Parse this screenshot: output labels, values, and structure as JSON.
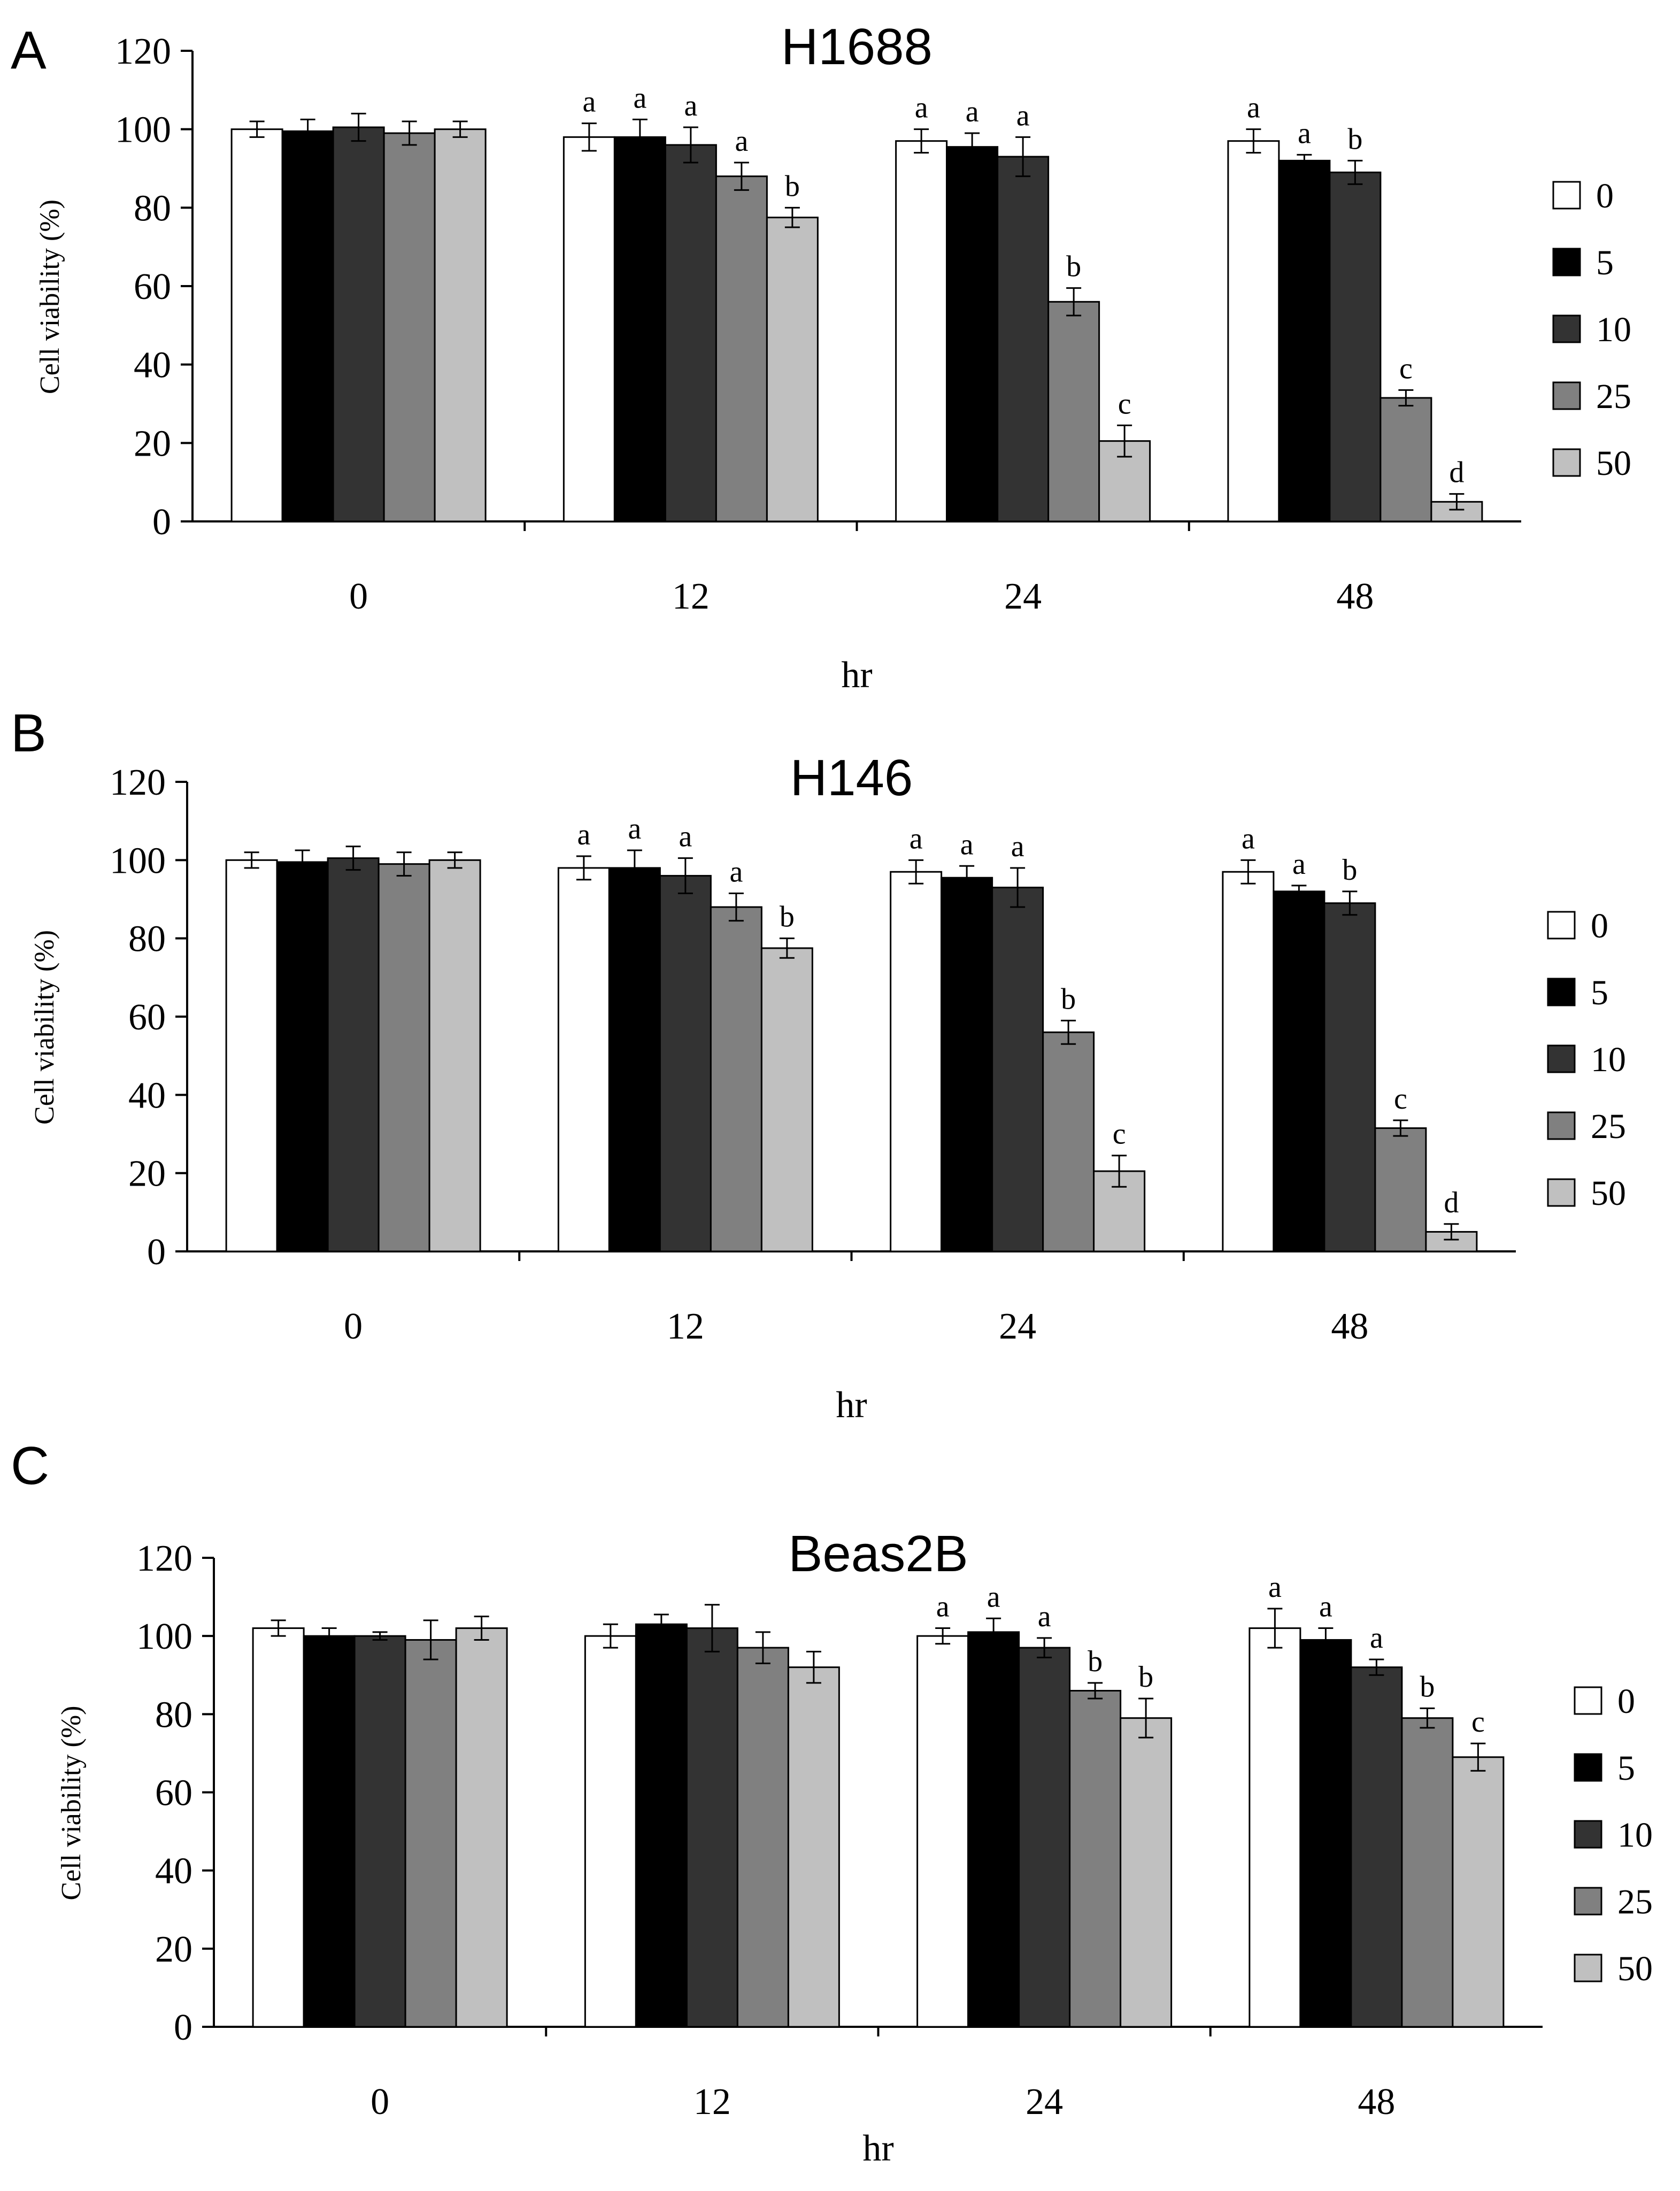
{
  "figure": {
    "panels": [
      "A",
      "B",
      "C"
    ]
  },
  "legend_title": "",
  "chart_data": [
    {
      "type": "bar",
      "panel_label": "A",
      "title": "H1688",
      "xlabel": "hr",
      "ylabel": "Cell viability (%)",
      "ylim": [
        0,
        120
      ],
      "yticks": [
        "0",
        "20",
        "40",
        "60",
        "80",
        "100",
        "120"
      ],
      "categories": [
        "0",
        "12",
        "24",
        "48"
      ],
      "series": [
        {
          "name": "0",
          "color": "#ffffff",
          "values": [
            100,
            98,
            97,
            97
          ],
          "errors": [
            2,
            3.5,
            3,
            3
          ],
          "sig": [
            "",
            "a",
            "a",
            "a"
          ]
        },
        {
          "name": "5",
          "color": "#000000",
          "values": [
            99.5,
            98,
            95.5,
            92
          ],
          "errors": [
            3,
            4.5,
            3.5,
            1.5
          ],
          "sig": [
            "",
            "a",
            "a",
            "a"
          ]
        },
        {
          "name": "10",
          "color": "#333333",
          "values": [
            100.5,
            96,
            93,
            89
          ],
          "errors": [
            3.5,
            4.5,
            5,
            3
          ],
          "sig": [
            "",
            "a",
            "a",
            "b"
          ]
        },
        {
          "name": "25",
          "color": "#808080",
          "values": [
            99,
            88,
            56,
            31.5
          ],
          "errors": [
            3,
            3.5,
            3.5,
            2
          ],
          "sig": [
            "",
            "a",
            "b",
            "c"
          ]
        },
        {
          "name": "50",
          "color": "#c0c0c0",
          "values": [
            100,
            77.5,
            20.5,
            5
          ],
          "errors": [
            2,
            2.5,
            4,
            2
          ],
          "sig": [
            "",
            "b",
            "c",
            "d"
          ]
        }
      ]
    },
    {
      "type": "bar",
      "panel_label": "B",
      "title": "H146",
      "xlabel": "hr",
      "ylabel": "Cell viability (%)",
      "ylim": [
        0,
        120
      ],
      "yticks": [
        "0",
        "20",
        "40",
        "60",
        "80",
        "100",
        "120"
      ],
      "categories": [
        "0",
        "12",
        "24",
        "48"
      ],
      "series": [
        {
          "name": "0",
          "color": "#ffffff",
          "values": [
            100,
            98,
            97,
            97
          ],
          "errors": [
            2,
            3,
            3,
            3
          ],
          "sig": [
            "",
            "a",
            "a",
            "a"
          ]
        },
        {
          "name": "5",
          "color": "#000000",
          "values": [
            99.5,
            98,
            95.5,
            92
          ],
          "errors": [
            3,
            4.5,
            3,
            1.5
          ],
          "sig": [
            "",
            "a",
            "a",
            "a"
          ]
        },
        {
          "name": "10",
          "color": "#333333",
          "values": [
            100.5,
            96,
            93,
            89
          ],
          "errors": [
            3,
            4.5,
            5,
            3
          ],
          "sig": [
            "",
            "a",
            "a",
            "b"
          ]
        },
        {
          "name": "25",
          "color": "#808080",
          "values": [
            99,
            88,
            56,
            31.5
          ],
          "errors": [
            3,
            3.5,
            3,
            2
          ],
          "sig": [
            "",
            "a",
            "b",
            "c"
          ]
        },
        {
          "name": "50",
          "color": "#c0c0c0",
          "values": [
            100,
            77.5,
            20.5,
            5
          ],
          "errors": [
            2,
            2.5,
            4,
            2
          ],
          "sig": [
            "",
            "b",
            "c",
            "d"
          ]
        }
      ]
    },
    {
      "type": "bar",
      "panel_label": "C",
      "title": "Beas2B",
      "xlabel": "hr",
      "ylabel": "Cell viability (%)",
      "ylim": [
        0,
        120
      ],
      "yticks": [
        "0",
        "20",
        "40",
        "60",
        "80",
        "100",
        "120"
      ],
      "categories": [
        "0",
        "12",
        "24",
        "48"
      ],
      "series": [
        {
          "name": "0",
          "color": "#ffffff",
          "values": [
            102,
            100,
            100,
            102
          ],
          "errors": [
            2,
            3,
            2,
            5
          ],
          "sig": [
            "",
            "",
            "a",
            "a"
          ]
        },
        {
          "name": "5",
          "color": "#000000",
          "values": [
            100,
            103,
            101,
            99
          ],
          "errors": [
            2,
            2.5,
            3.5,
            3
          ],
          "sig": [
            "",
            "",
            "a",
            "a"
          ]
        },
        {
          "name": "10",
          "color": "#333333",
          "values": [
            100,
            102,
            97,
            92
          ],
          "errors": [
            1,
            6,
            2.5,
            2
          ],
          "sig": [
            "",
            "",
            "a",
            "a"
          ]
        },
        {
          "name": "25",
          "color": "#808080",
          "values": [
            99,
            97,
            86,
            79
          ],
          "errors": [
            5,
            4,
            2,
            2.5
          ],
          "sig": [
            "",
            "",
            "b",
            "b"
          ]
        },
        {
          "name": "50",
          "color": "#c0c0c0",
          "values": [
            102,
            92,
            79,
            69
          ],
          "errors": [
            3,
            4,
            5,
            3.5
          ],
          "sig": [
            "",
            "",
            "b",
            "c"
          ]
        }
      ]
    }
  ]
}
